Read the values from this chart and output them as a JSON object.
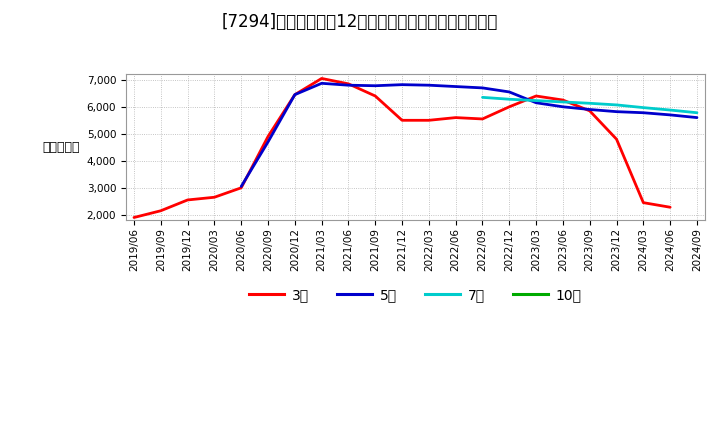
{
  "title": "[7294]　当期純利益12か月移動合計の標準偏差の推移",
  "ylabel": "（百万円）",
  "ylim": [
    1800,
    7200
  ],
  "yticks": [
    2000,
    3000,
    4000,
    5000,
    6000,
    7000
  ],
  "background_color": "#ffffff",
  "plot_bg_color": "#ffffff",
  "grid_color": "#aaaaaa",
  "x_labels": [
    "2019/06",
    "2019/09",
    "2019/12",
    "2020/03",
    "2020/06",
    "2020/09",
    "2020/12",
    "2021/03",
    "2021/06",
    "2021/09",
    "2021/12",
    "2022/03",
    "2022/06",
    "2022/09",
    "2022/12",
    "2023/03",
    "2023/06",
    "2023/09",
    "2023/12",
    "2024/03",
    "2024/06",
    "2024/09"
  ],
  "series_3yr": {
    "label": "3年",
    "color": "#ff0000",
    "values": [
      1900,
      2150,
      2550,
      2650,
      3000,
      4900,
      6450,
      7050,
      6850,
      6400,
      5500,
      5500,
      5600,
      5550,
      6000,
      6400,
      6250,
      5850,
      4800,
      2450,
      2280,
      null
    ]
  },
  "series_5yr": {
    "label": "5年",
    "color": "#0000cc",
    "values": [
      null,
      null,
      null,
      null,
      3050,
      4700,
      6450,
      6870,
      6800,
      6780,
      6820,
      6800,
      6750,
      6700,
      6550,
      6150,
      6000,
      5900,
      5820,
      5780,
      5700,
      5600
    ]
  },
  "series_7yr": {
    "label": "7年",
    "color": "#00cccc",
    "values": [
      null,
      null,
      null,
      null,
      null,
      null,
      null,
      null,
      null,
      null,
      null,
      null,
      null,
      6350,
      6280,
      6230,
      6180,
      6130,
      6070,
      5970,
      5880,
      5780
    ]
  },
  "series_10yr": {
    "label": "10年",
    "color": "#00aa00",
    "values": [
      null,
      null,
      null,
      null,
      null,
      null,
      null,
      null,
      null,
      null,
      null,
      null,
      null,
      null,
      null,
      null,
      null,
      null,
      null,
      null,
      null,
      null
    ]
  },
  "line_width": 2.0,
  "title_fontsize": 12,
  "label_fontsize": 9,
  "tick_fontsize": 7.5,
  "legend_fontsize": 10
}
